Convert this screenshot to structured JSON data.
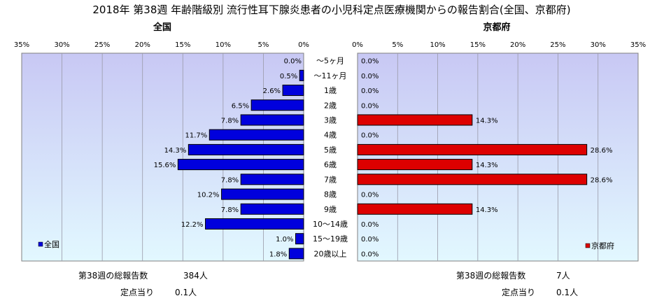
{
  "title": "2018年 第38週 年齢階級別 流行性耳下腺炎患者の小児科定点医療機関からの報告割合(全国、京都府)",
  "colors": {
    "national": "#0000dd",
    "kyoto": "#dd0000",
    "grad_top": "#c8c8f4",
    "grad_bottom": "#e2f8ff"
  },
  "chart_data": [
    {
      "type": "bar",
      "orientation": "horizontal",
      "title": "全国",
      "legend": "全国",
      "legend_position": "bottom-left",
      "xlim": [
        35,
        0
      ],
      "ticks": [
        "35%",
        "30%",
        "25%",
        "20%",
        "15%",
        "10%",
        "5%",
        "0%"
      ],
      "categories": [
        "～5ヶ月",
        "～11ヶ月",
        "1歳",
        "2歳",
        "3歳",
        "4歳",
        "5歳",
        "6歳",
        "7歳",
        "8歳",
        "9歳",
        "10～14歳",
        "15～19歳",
        "20歳以上"
      ],
      "values": [
        0.0,
        0.5,
        2.6,
        6.5,
        7.8,
        11.7,
        14.3,
        15.6,
        7.8,
        10.2,
        7.8,
        12.2,
        1.0,
        1.8
      ],
      "labels": [
        "0.0%",
        "0.5%",
        "2.6%",
        "6.5%",
        "7.8%",
        "11.7%",
        "14.3%",
        "15.6%",
        "7.8%",
        "10.2%",
        "7.8%",
        "12.2%",
        "1.0%",
        "1.8%"
      ],
      "grid": true
    },
    {
      "type": "bar",
      "orientation": "horizontal",
      "title": "京都府",
      "legend": "京都府",
      "legend_position": "bottom-right",
      "xlim": [
        0,
        35
      ],
      "ticks": [
        "0%",
        "5%",
        "10%",
        "15%",
        "20%",
        "25%",
        "30%",
        "35%"
      ],
      "categories": [
        "～5ヶ月",
        "～11ヶ月",
        "1歳",
        "2歳",
        "3歳",
        "4歳",
        "5歳",
        "6歳",
        "7歳",
        "8歳",
        "9歳",
        "10～14歳",
        "15～19歳",
        "20歳以上"
      ],
      "values": [
        0.0,
        0.0,
        0.0,
        0.0,
        14.3,
        0.0,
        28.6,
        14.3,
        28.6,
        0.0,
        14.3,
        0.0,
        0.0,
        0.0
      ],
      "labels": [
        "0.0%",
        "0.0%",
        "0.0%",
        "0.0%",
        "14.3%",
        "0.0%",
        "28.6%",
        "14.3%",
        "28.6%",
        "0.0%",
        "14.3%",
        "0.0%",
        "0.0%",
        "0.0%"
      ],
      "grid": true
    }
  ],
  "footer": {
    "national": {
      "total_label": "第38週の総報告数",
      "total_value": "384人",
      "per_label": "定点当り",
      "per_value": "0.1人"
    },
    "kyoto": {
      "total_label": "第38週の総報告数",
      "total_value": "7人",
      "per_label": "定点当り",
      "per_value": "0.1人"
    }
  }
}
